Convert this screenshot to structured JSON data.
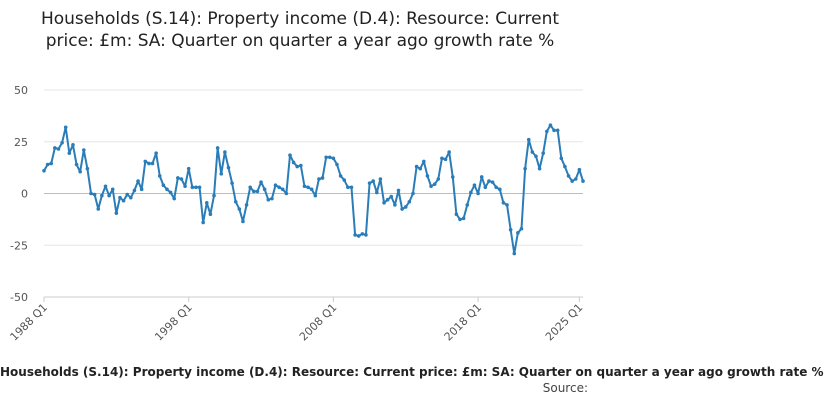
{
  "chart_data": {
    "type": "line",
    "title": "Households (S.14): Property income (D.4): Resource: Current price: £m: SA: Quarter on quarter a year ago growth rate %",
    "series_label": "Households (S.14): Property income (D.4): Resource: Current price: £m: SA: Quarter on quarter a year ago growth rate %",
    "source_label": "Source:",
    "ylim": [
      -50,
      50
    ],
    "yticks": [
      50,
      25,
      0,
      -25,
      -50
    ],
    "xticks": [
      "1988 Q1",
      "1998 Q1",
      "2008 Q1",
      "2018 Q1",
      "2025 Q1"
    ],
    "grid": true,
    "line_color": "#2a7db8",
    "series": [
      {
        "values": [
          11,
          14,
          14.5,
          22,
          21.5,
          24.5,
          32,
          19.5,
          23.5,
          14,
          10.5,
          21,
          12,
          0,
          -0.5,
          -7.5,
          -1,
          3.5,
          -1,
          2,
          -9.5,
          -2,
          -3.5,
          -0.5,
          -2,
          1.5,
          6,
          2,
          15.5,
          14.5,
          14.5,
          19.5,
          8.5,
          4,
          2,
          0.5,
          -2.5,
          7.5,
          7,
          3.5,
          12,
          3,
          3,
          3,
          -14,
          -4.5,
          -10,
          -1,
          22,
          9.5,
          20,
          12.5,
          5,
          -4,
          -7.5,
          -13.5,
          -5.5,
          3,
          1,
          1,
          5.5,
          2,
          -3,
          -2.5,
          4,
          3,
          2,
          0,
          18.5,
          15,
          13,
          13.5,
          3.5,
          3,
          2,
          -1,
          7,
          7.5,
          17.5,
          17.5,
          17,
          14,
          8.5,
          6.5,
          3,
          3,
          -20,
          -20.5,
          -19.5,
          -20,
          5,
          6,
          0.5,
          7,
          -4.5,
          -3,
          -1.5,
          -5.5,
          1.5,
          -7.5,
          -6.5,
          -4,
          0,
          13,
          12,
          15.5,
          8.5,
          3.5,
          4.5,
          7,
          17,
          16.5,
          20,
          8,
          -10,
          -12.5,
          -12,
          -5.5,
          0.5,
          4,
          0,
          8,
          3,
          6,
          5.5,
          3,
          2,
          -4.5,
          -5.5,
          -17.5,
          -29,
          -19,
          -17,
          12,
          26,
          20,
          18,
          12,
          19.5,
          30,
          33,
          30.5,
          30.5,
          17,
          13,
          8.5,
          6,
          7,
          11.5,
          6
        ]
      }
    ]
  }
}
